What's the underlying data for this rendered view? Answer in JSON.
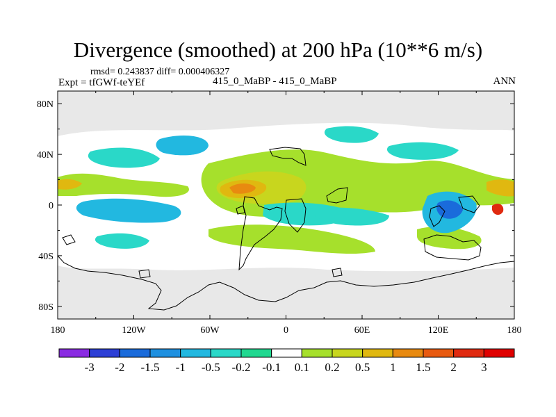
{
  "title": "Divergence (smoothed) at 200 hPa (10**6 m/s)",
  "stats": "rmsd= 0.243837  diff= 0.000406327",
  "experiment": "Expt = tfGWf-teYEf",
  "case": "415_0_MaBP - 415_0_MaBP",
  "season": "ANN",
  "colors": {
    "background": "#e8e8e8",
    "neutral": "#ffffff",
    "land_outline": "#000000"
  },
  "chart_data": {
    "type": "heatmap",
    "title": "Divergence (smoothed) at 200 hPa (10**6 m/s)",
    "x_ticks": [
      "180",
      "120W",
      "60W",
      "0",
      "60E",
      "120E",
      "180"
    ],
    "y_ticks": [
      "80N",
      "40N",
      "0",
      "40S",
      "80S"
    ],
    "xlim": [
      -180,
      180
    ],
    "ylim": [
      -90,
      90
    ],
    "colorbar": {
      "labels": [
        "-3",
        "-2",
        "-1.5",
        "-1",
        "-0.5",
        "-0.2",
        "-0.1",
        "0.1",
        "0.2",
        "0.5",
        "1",
        "1.5",
        "2",
        "3"
      ],
      "colors": [
        "#8a2be2",
        "#2d3fd6",
        "#1a6bdb",
        "#1e90e0",
        "#22b8e0",
        "#2ad8c8",
        "#20d890",
        "#ffffff",
        "#a6e02c",
        "#c8d61e",
        "#e0b810",
        "#e88a10",
        "#e85a10",
        "#e02a10",
        "#e00000"
      ]
    }
  }
}
